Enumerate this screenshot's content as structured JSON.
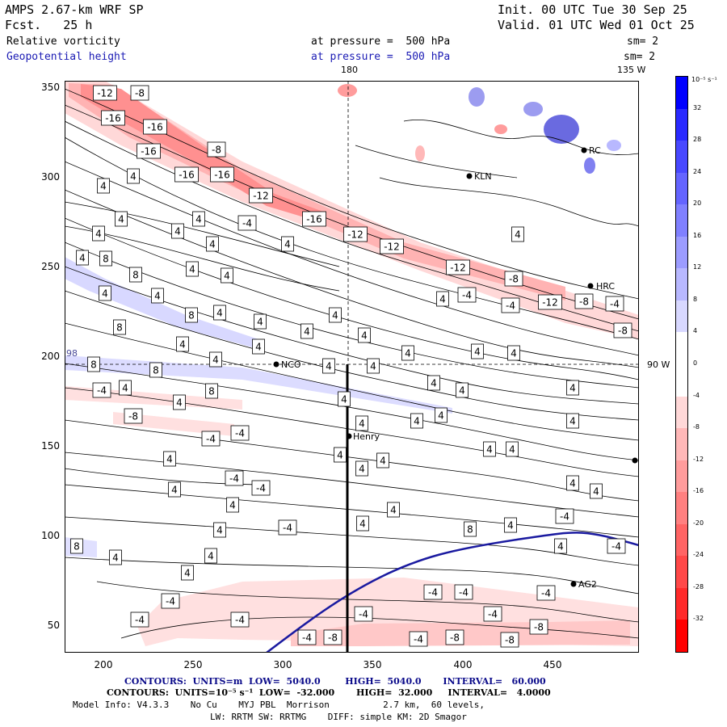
{
  "header": {
    "model": "AMPS 2.67-km WRF SP",
    "forecast": "Fcst.   25 h",
    "field1": "Relative vorticity",
    "field2": "Geopotential height",
    "init": "Init. 00 UTC Tue 30 Sep 25",
    "valid": "Valid. 01 UTC Wed 01 Oct 25",
    "level1": "at pressure =  500 hPa",
    "level2": "at pressure =  500 hPa",
    "smooth1": "sm= 2",
    "smooth2": "sm= 2"
  },
  "map": {
    "lon_label_top_180": "180",
    "lon_label_top_135w": "135 W",
    "lat_label_right_90w": "90 W",
    "lat_label_left_98": "98",
    "x_ticks": [
      "200",
      "250",
      "300",
      "350",
      "400",
      "450"
    ],
    "y_ticks": [
      "350",
      "300",
      "250",
      "200",
      "150",
      "100",
      "50"
    ],
    "stations": [
      {
        "name": "RC",
        "label": "RC"
      },
      {
        "name": "KLN",
        "label": "KLN"
      },
      {
        "name": "HRC",
        "label": "HRC"
      },
      {
        "name": "NCO",
        "label": "NCO"
      },
      {
        "name": "Henry",
        "label": "Henry"
      },
      {
        "name": "AG2",
        "label": "AG2"
      }
    ]
  },
  "colorbar": {
    "unit_label": "10⁻⁵ s⁻¹",
    "labels": [
      "32",
      "28",
      "24",
      "20",
      "16",
      "12",
      "8",
      "4",
      "0",
      "-4",
      "-8",
      "-12",
      "-16",
      "-20",
      "-24",
      "-28",
      "-32"
    ],
    "colors": [
      "#0000ff",
      "#2a2aff",
      "#4848ff",
      "#6464ff",
      "#8080ff",
      "#9c9cff",
      "#b8b8ff",
      "#d8d8ff",
      "#ffffff",
      "#ffffff",
      "#ffd8d8",
      "#ffb8b8",
      "#ff9c9c",
      "#ff8080",
      "#ff6464",
      "#ff4848",
      "#ff2a2a",
      "#ff0000"
    ]
  },
  "footer": {
    "line1": "CONTOURS:  UNITS=m  LOW=  5040.0        HIGH=  5040.0       INTERVAL=   60.000",
    "line2": "CONTOURS:  UNITS=10⁻⁵ s⁻¹  LOW=  -32.000       HIGH=  32.000     INTERVAL=   4.0000",
    "line3": "Model Info: V4.3.3    No Cu    MYJ PBL  Morrison          2.7 km,  60 levels,",
    "line4": "LW: RRTM SW: RRTMG    DIFF: simple KM: 2D Smagor"
  },
  "contour_labels": [
    {
      "v": "-12",
      "x": 130,
      "y": 115
    },
    {
      "v": "-8",
      "x": 173,
      "y": 115
    },
    {
      "v": "-16",
      "x": 140,
      "y": 146
    },
    {
      "v": "-16",
      "x": 192,
      "y": 157
    },
    {
      "v": "-16",
      "x": 184,
      "y": 187
    },
    {
      "v": "-8",
      "x": 268,
      "y": 185
    },
    {
      "v": "-16",
      "x": 231,
      "y": 216
    },
    {
      "v": "-16",
      "x": 275,
      "y": 216
    },
    {
      "v": "4",
      "x": 165,
      "y": 218
    },
    {
      "v": "4",
      "x": 128,
      "y": 230
    },
    {
      "v": "-12",
      "x": 323,
      "y": 242
    },
    {
      "v": "4",
      "x": 246,
      "y": 271
    },
    {
      "v": "4",
      "x": 150,
      "y": 271
    },
    {
      "v": "-4",
      "x": 306,
      "y": 276
    },
    {
      "v": "-16",
      "x": 389,
      "y": 271
    },
    {
      "v": "4",
      "x": 122,
      "y": 289
    },
    {
      "v": "4",
      "x": 220,
      "y": 286
    },
    {
      "v": "-12",
      "x": 440,
      "y": 290
    },
    {
      "v": "4",
      "x": 641,
      "y": 290
    },
    {
      "v": "-12",
      "x": 485,
      "y": 305
    },
    {
      "v": "4",
      "x": 263,
      "y": 302
    },
    {
      "v": "4",
      "x": 356,
      "y": 302
    },
    {
      "v": "4",
      "x": 102,
      "y": 319
    },
    {
      "v": "8",
      "x": 131,
      "y": 320
    },
    {
      "v": "-12",
      "x": 567,
      "y": 331
    },
    {
      "v": "4",
      "x": 238,
      "y": 333
    },
    {
      "v": "8",
      "x": 168,
      "y": 340
    },
    {
      "v": "4",
      "x": 281,
      "y": 341
    },
    {
      "v": "-8",
      "x": 636,
      "y": 345
    },
    {
      "v": "4",
      "x": 130,
      "y": 363
    },
    {
      "v": "4",
      "x": 195,
      "y": 366
    },
    {
      "v": "-4",
      "x": 578,
      "y": 365
    },
    {
      "v": "4",
      "x": 548,
      "y": 370
    },
    {
      "v": "-12",
      "x": 681,
      "y": 374
    },
    {
      "v": "-8",
      "x": 723,
      "y": 373
    },
    {
      "v": "-4",
      "x": 761,
      "y": 376
    },
    {
      "v": "-4",
      "x": 632,
      "y": 378
    },
    {
      "v": "4",
      "x": 272,
      "y": 387
    },
    {
      "v": "8",
      "x": 237,
      "y": 390
    },
    {
      "v": "4",
      "x": 415,
      "y": 390
    },
    {
      "v": "4",
      "x": 322,
      "y": 398
    },
    {
      "v": "-8",
      "x": 771,
      "y": 409
    },
    {
      "v": "8",
      "x": 148,
      "y": 405
    },
    {
      "v": "4",
      "x": 380,
      "y": 410
    },
    {
      "v": "4",
      "x": 451,
      "y": 415
    },
    {
      "v": "4",
      "x": 226,
      "y": 426
    },
    {
      "v": "4",
      "x": 320,
      "y": 429
    },
    {
      "v": "4",
      "x": 505,
      "y": 437
    },
    {
      "v": "4",
      "x": 591,
      "y": 435
    },
    {
      "v": "4",
      "x": 636,
      "y": 437
    },
    {
      "v": "8",
      "x": 116,
      "y": 451
    },
    {
      "v": "4",
      "x": 267,
      "y": 445
    },
    {
      "v": "8",
      "x": 193,
      "y": 458
    },
    {
      "v": "4",
      "x": 407,
      "y": 453
    },
    {
      "v": "4",
      "x": 462,
      "y": 453
    },
    {
      "v": "4",
      "x": 537,
      "y": 474
    },
    {
      "v": "-4",
      "x": 126,
      "y": 483
    },
    {
      "v": "4",
      "x": 155,
      "y": 480
    },
    {
      "v": "8",
      "x": 262,
      "y": 484
    },
    {
      "v": "4",
      "x": 709,
      "y": 480
    },
    {
      "v": "4",
      "x": 572,
      "y": 483
    },
    {
      "v": "4",
      "x": 426,
      "y": 494
    },
    {
      "v": "4",
      "x": 222,
      "y": 498
    },
    {
      "v": "-8",
      "x": 165,
      "y": 515
    },
    {
      "v": "4",
      "x": 448,
      "y": 524
    },
    {
      "v": "4",
      "x": 516,
      "y": 521
    },
    {
      "v": "4",
      "x": 546,
      "y": 514
    },
    {
      "v": "4",
      "x": 709,
      "y": 521
    },
    {
      "v": "-4",
      "x": 297,
      "y": 536
    },
    {
      "v": "-4",
      "x": 261,
      "y": 543
    },
    {
      "v": "4",
      "x": 606,
      "y": 556
    },
    {
      "v": "4",
      "x": 634,
      "y": 556
    },
    {
      "v": "4",
      "x": 421,
      "y": 563
    },
    {
      "v": "4",
      "x": 474,
      "y": 570
    },
    {
      "v": "4",
      "x": 210,
      "y": 568
    },
    {
      "v": "4",
      "x": 448,
      "y": 580
    },
    {
      "v": "-4",
      "x": 290,
      "y": 592
    },
    {
      "v": "-4",
      "x": 323,
      "y": 604
    },
    {
      "v": "4",
      "x": 709,
      "y": 598
    },
    {
      "v": "4",
      "x": 738,
      "y": 608
    },
    {
      "v": "4",
      "x": 216,
      "y": 606
    },
    {
      "v": "4",
      "x": 288,
      "y": 625
    },
    {
      "v": "4",
      "x": 487,
      "y": 631
    },
    {
      "v": "-4",
      "x": 699,
      "y": 639
    },
    {
      "v": "4",
      "x": 449,
      "y": 648
    },
    {
      "v": "4",
      "x": 632,
      "y": 650
    },
    {
      "v": "-4",
      "x": 356,
      "y": 653
    },
    {
      "v": "4",
      "x": 272,
      "y": 656
    },
    {
      "v": "8",
      "x": 582,
      "y": 655
    },
    {
      "v": "8",
      "x": 95,
      "y": 676
    },
    {
      "v": "4",
      "x": 694,
      "y": 676
    },
    {
      "v": "-4",
      "x": 763,
      "y": 676
    },
    {
      "v": "4",
      "x": 143,
      "y": 690
    },
    {
      "v": "4",
      "x": 261,
      "y": 688
    },
    {
      "v": "4",
      "x": 232,
      "y": 709
    },
    {
      "v": "-4",
      "x": 536,
      "y": 733
    },
    {
      "v": "-4",
      "x": 574,
      "y": 733
    },
    {
      "v": "-4",
      "x": 676,
      "y": 734
    },
    {
      "v": "-4",
      "x": 211,
      "y": 744
    },
    {
      "v": "-4",
      "x": 450,
      "y": 760
    },
    {
      "v": "-4",
      "x": 610,
      "y": 760
    },
    {
      "v": "-4",
      "x": 173,
      "y": 767
    },
    {
      "v": "-4",
      "x": 297,
      "y": 767
    },
    {
      "v": "-8",
      "x": 667,
      "y": 776
    },
    {
      "v": "-4",
      "x": 380,
      "y": 789
    },
    {
      "v": "-8",
      "x": 412,
      "y": 789
    },
    {
      "v": "-4",
      "x": 518,
      "y": 791
    },
    {
      "v": "-8",
      "x": 563,
      "y": 789
    },
    {
      "v": "-8",
      "x": 631,
      "y": 792
    }
  ]
}
